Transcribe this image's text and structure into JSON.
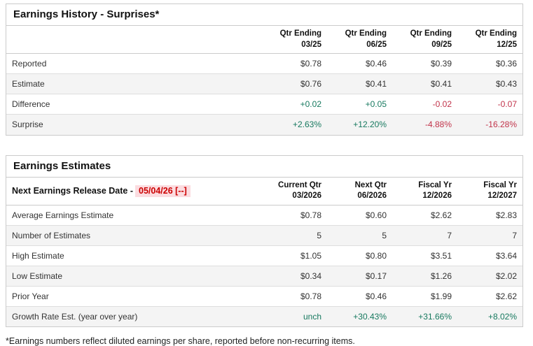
{
  "history": {
    "title": "Earnings History - Surprises*",
    "columns": [
      {
        "l1": "Qtr Ending",
        "l2": "03/25"
      },
      {
        "l1": "Qtr Ending",
        "l2": "06/25"
      },
      {
        "l1": "Qtr Ending",
        "l2": "09/25"
      },
      {
        "l1": "Qtr Ending",
        "l2": "12/25"
      }
    ],
    "rows": [
      {
        "label": "Reported",
        "values": [
          "$0.78",
          "$0.46",
          "$0.39",
          "$0.36"
        ]
      },
      {
        "label": "Estimate",
        "values": [
          "$0.76",
          "$0.41",
          "$0.41",
          "$0.43"
        ]
      },
      {
        "label": "Difference",
        "values": [
          "+0.02",
          "+0.05",
          "-0.02",
          "-0.07"
        ],
        "tones": [
          "pos",
          "pos",
          "neg",
          "neg"
        ]
      },
      {
        "label": "Surprise",
        "values": [
          "+2.63%",
          "+12.20%",
          "-4.88%",
          "-16.28%"
        ],
        "tones": [
          "pos",
          "pos",
          "neg",
          "neg"
        ]
      }
    ]
  },
  "estimates": {
    "title": "Earnings Estimates",
    "release_label": "Next Earnings Release Date -",
    "release_date": "05/04/26 [--]",
    "columns": [
      {
        "l1": "Current Qtr",
        "l2": "03/2026"
      },
      {
        "l1": "Next Qtr",
        "l2": "06/2026"
      },
      {
        "l1": "Fiscal Yr",
        "l2": "12/2026"
      },
      {
        "l1": "Fiscal Yr",
        "l2": "12/2027"
      }
    ],
    "rows": [
      {
        "label": "Average Earnings Estimate",
        "values": [
          "$0.78",
          "$0.60",
          "$2.62",
          "$2.83"
        ]
      },
      {
        "label": "Number of Estimates",
        "values": [
          "5",
          "5",
          "7",
          "7"
        ]
      },
      {
        "label": "High Estimate",
        "values": [
          "$1.05",
          "$0.80",
          "$3.51",
          "$3.64"
        ]
      },
      {
        "label": "Low Estimate",
        "values": [
          "$0.34",
          "$0.17",
          "$1.26",
          "$2.02"
        ]
      },
      {
        "label": "Prior Year",
        "values": [
          "$0.78",
          "$0.46",
          "$1.99",
          "$2.62"
        ]
      },
      {
        "label": "Growth Rate Est. (year over year)",
        "values": [
          "unch",
          "+30.43%",
          "+31.66%",
          "+8.02%"
        ],
        "tones": [
          "pos",
          "pos",
          "pos",
          "pos"
        ]
      }
    ]
  },
  "footnote": "*Earnings numbers reflect diluted earnings per share, reported before non-recurring items.",
  "colors": {
    "positive": "#17795f",
    "negative": "#c1334a",
    "release_date_text": "#cc0000",
    "release_date_bg": "#fbdce0",
    "row_alt_bg": "#f4f4f4",
    "border": "#cbcbcb"
  }
}
